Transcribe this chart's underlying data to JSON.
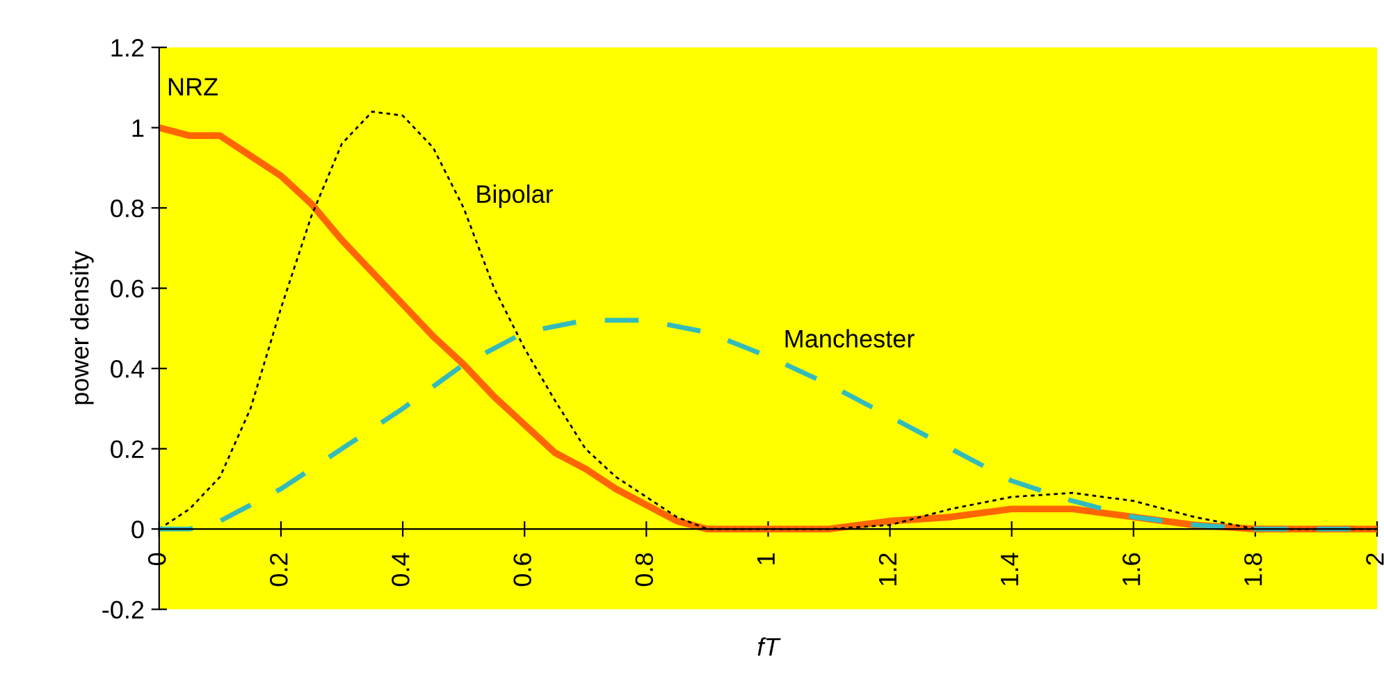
{
  "chart_data": {
    "type": "line",
    "xlabel": "fT",
    "ylabel": "power density",
    "xlim": [
      0,
      2
    ],
    "xticks": [
      0,
      0.2,
      0.4,
      0.6,
      0.8,
      1,
      1.2,
      1.4,
      1.6,
      1.8,
      2
    ],
    "ylim": [
      -0.2,
      1.2
    ],
    "yticks": [
      -0.2,
      0,
      0.2,
      0.4,
      0.6,
      0.8,
      1,
      1.2
    ],
    "grid": false,
    "legend": false,
    "series": [
      {
        "name": "NRZ",
        "color": "#ff6600",
        "line_style": "solid",
        "x": [
          0,
          0.05,
          0.1,
          0.15,
          0.2,
          0.25,
          0.3,
          0.35,
          0.4,
          0.45,
          0.5,
          0.55,
          0.6,
          0.65,
          0.7,
          0.75,
          0.8,
          0.85,
          0.9,
          1.0,
          1.1,
          1.2,
          1.3,
          1.4,
          1.5,
          1.6,
          1.7,
          1.8,
          2.0
        ],
        "values": [
          1,
          0.98,
          0.98,
          0.93,
          0.88,
          0.81,
          0.72,
          0.64,
          0.56,
          0.48,
          0.41,
          0.33,
          0.26,
          0.19,
          0.15,
          0.1,
          0.06,
          0.02,
          0,
          0,
          0,
          0.02,
          0.03,
          0.05,
          0.05,
          0.03,
          0.01,
          0,
          0
        ]
      },
      {
        "name": "Bipolar",
        "color": "#000000",
        "line_style": "dotted",
        "x": [
          0,
          0.05,
          0.1,
          0.15,
          0.2,
          0.25,
          0.3,
          0.35,
          0.4,
          0.45,
          0.5,
          0.55,
          0.6,
          0.65,
          0.7,
          0.75,
          0.8,
          0.85,
          0.9,
          1.0,
          1.1,
          1.2,
          1.3,
          1.4,
          1.5,
          1.6,
          1.7,
          1.8,
          2.0
        ],
        "values": [
          0,
          0.05,
          0.13,
          0.3,
          0.55,
          0.78,
          0.96,
          1.04,
          1.03,
          0.95,
          0.8,
          0.6,
          0.45,
          0.32,
          0.2,
          0.13,
          0.08,
          0.03,
          0,
          0,
          0,
          0.01,
          0.05,
          0.08,
          0.09,
          0.07,
          0.03,
          0,
          0
        ]
      },
      {
        "name": "Manchester",
        "color": "#33bbbb",
        "line_style": "dashed",
        "x": [
          0,
          0.05,
          0.1,
          0.2,
          0.3,
          0.4,
          0.5,
          0.6,
          0.7,
          0.8,
          0.9,
          1.0,
          1.1,
          1.2,
          1.3,
          1.4,
          1.5,
          1.6,
          1.7,
          1.8,
          2.0
        ],
        "values": [
          0,
          0,
          0.02,
          0.1,
          0.2,
          0.3,
          0.41,
          0.49,
          0.52,
          0.52,
          0.49,
          0.43,
          0.36,
          0.28,
          0.2,
          0.12,
          0.07,
          0.03,
          0.01,
          0,
          0
        ]
      }
    ]
  }
}
